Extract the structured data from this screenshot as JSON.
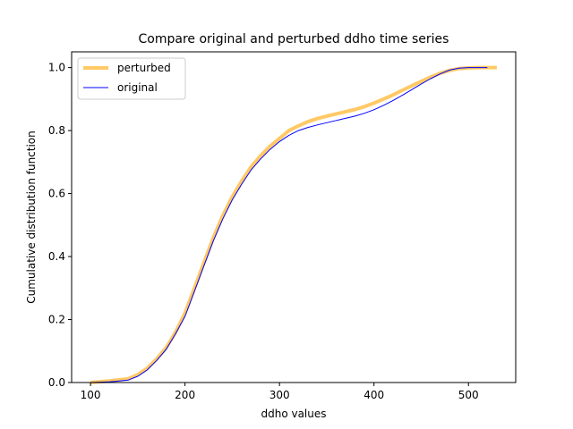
{
  "chart_data": {
    "type": "line",
    "title": "Compare original and perturbed ddho time series",
    "xlabel": "ddho values",
    "ylabel": "Cumulative distribution function",
    "xlim": [
      80,
      550
    ],
    "ylim": [
      0,
      1.05
    ],
    "xticks": [
      100,
      200,
      300,
      400,
      500
    ],
    "yticks": [
      0.0,
      0.2,
      0.4,
      0.6,
      0.8,
      1.0
    ],
    "xtick_labels": [
      "100",
      "200",
      "300",
      "400",
      "500"
    ],
    "ytick_labels": [
      "0.0",
      "0.2",
      "0.4",
      "0.6",
      "0.8",
      "1.0"
    ],
    "grid": false,
    "legend_position": "top-left",
    "series": [
      {
        "name": "perturbed",
        "color": "#ffa500",
        "x": [
          100,
          120,
          140,
          150,
          160,
          170,
          180,
          190,
          200,
          210,
          220,
          230,
          240,
          250,
          260,
          270,
          280,
          290,
          300,
          310,
          320,
          330,
          340,
          350,
          360,
          370,
          380,
          390,
          400,
          410,
          420,
          430,
          440,
          450,
          460,
          470,
          480,
          490,
          500,
          510,
          520,
          530
        ],
        "y": [
          0.0,
          0.005,
          0.012,
          0.025,
          0.045,
          0.075,
          0.11,
          0.16,
          0.22,
          0.3,
          0.38,
          0.46,
          0.53,
          0.59,
          0.64,
          0.685,
          0.72,
          0.75,
          0.775,
          0.8,
          0.815,
          0.828,
          0.838,
          0.846,
          0.853,
          0.86,
          0.867,
          0.876,
          0.887,
          0.9,
          0.913,
          0.928,
          0.942,
          0.956,
          0.97,
          0.982,
          0.991,
          0.997,
          0.999,
          1.0,
          1.0,
          1.0
        ]
      },
      {
        "name": "original",
        "color": "#0000ff",
        "x": [
          100,
          120,
          140,
          150,
          160,
          170,
          180,
          190,
          200,
          210,
          220,
          230,
          240,
          250,
          260,
          270,
          280,
          290,
          300,
          310,
          320,
          330,
          340,
          350,
          360,
          370,
          380,
          390,
          400,
          410,
          420,
          430,
          440,
          450,
          460,
          470,
          480,
          490,
          500,
          510,
          520
        ],
        "y": [
          0.0,
          0.002,
          0.008,
          0.02,
          0.04,
          0.07,
          0.105,
          0.155,
          0.21,
          0.29,
          0.37,
          0.45,
          0.52,
          0.58,
          0.63,
          0.675,
          0.71,
          0.74,
          0.765,
          0.785,
          0.8,
          0.81,
          0.818,
          0.825,
          0.832,
          0.839,
          0.846,
          0.855,
          0.866,
          0.88,
          0.895,
          0.912,
          0.93,
          0.948,
          0.965,
          0.98,
          0.992,
          0.998,
          1.0,
          1.0,
          1.0
        ]
      }
    ]
  }
}
